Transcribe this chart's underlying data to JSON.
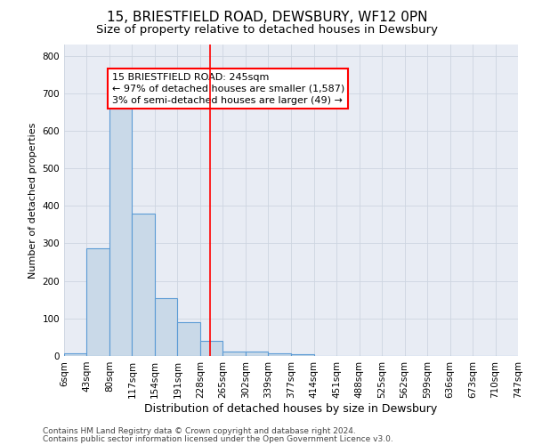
{
  "title1": "15, BRIESTFIELD ROAD, DEWSBURY, WF12 0PN",
  "title2": "Size of property relative to detached houses in Dewsbury",
  "xlabel": "Distribution of detached houses by size in Dewsbury",
  "ylabel": "Number of detached properties",
  "bin_edges": [
    6,
    43,
    80,
    117,
    154,
    191,
    228,
    265,
    302,
    339,
    377,
    414,
    451,
    488,
    525,
    562,
    599,
    636,
    673,
    710,
    747
  ],
  "bar_heights": [
    6,
    288,
    660,
    380,
    155,
    90,
    40,
    12,
    12,
    8,
    4,
    0,
    0,
    0,
    0,
    0,
    0,
    0,
    0,
    0
  ],
  "bar_color": "#c9d9e8",
  "bar_edge_color": "#5b9bd5",
  "bar_linewidth": 0.8,
  "vline_x": 245,
  "vline_color": "red",
  "vline_linewidth": 1.2,
  "annotation_text": "15 BRIESTFIELD ROAD: 245sqm\n← 97% of detached houses are smaller (1,587)\n3% of semi-detached houses are larger (49) →",
  "ylim": [
    0,
    830
  ],
  "yticks": [
    0,
    100,
    200,
    300,
    400,
    500,
    600,
    700,
    800
  ],
  "grid_color": "#cdd5e0",
  "background_color": "#e8ecf4",
  "footer_text1": "Contains HM Land Registry data © Crown copyright and database right 2024.",
  "footer_text2": "Contains public sector information licensed under the Open Government Licence v3.0.",
  "title1_fontsize": 11,
  "title2_fontsize": 9.5,
  "xlabel_fontsize": 9,
  "ylabel_fontsize": 8,
  "tick_fontsize": 7.5,
  "annotation_fontsize": 8,
  "footer_fontsize": 6.5
}
